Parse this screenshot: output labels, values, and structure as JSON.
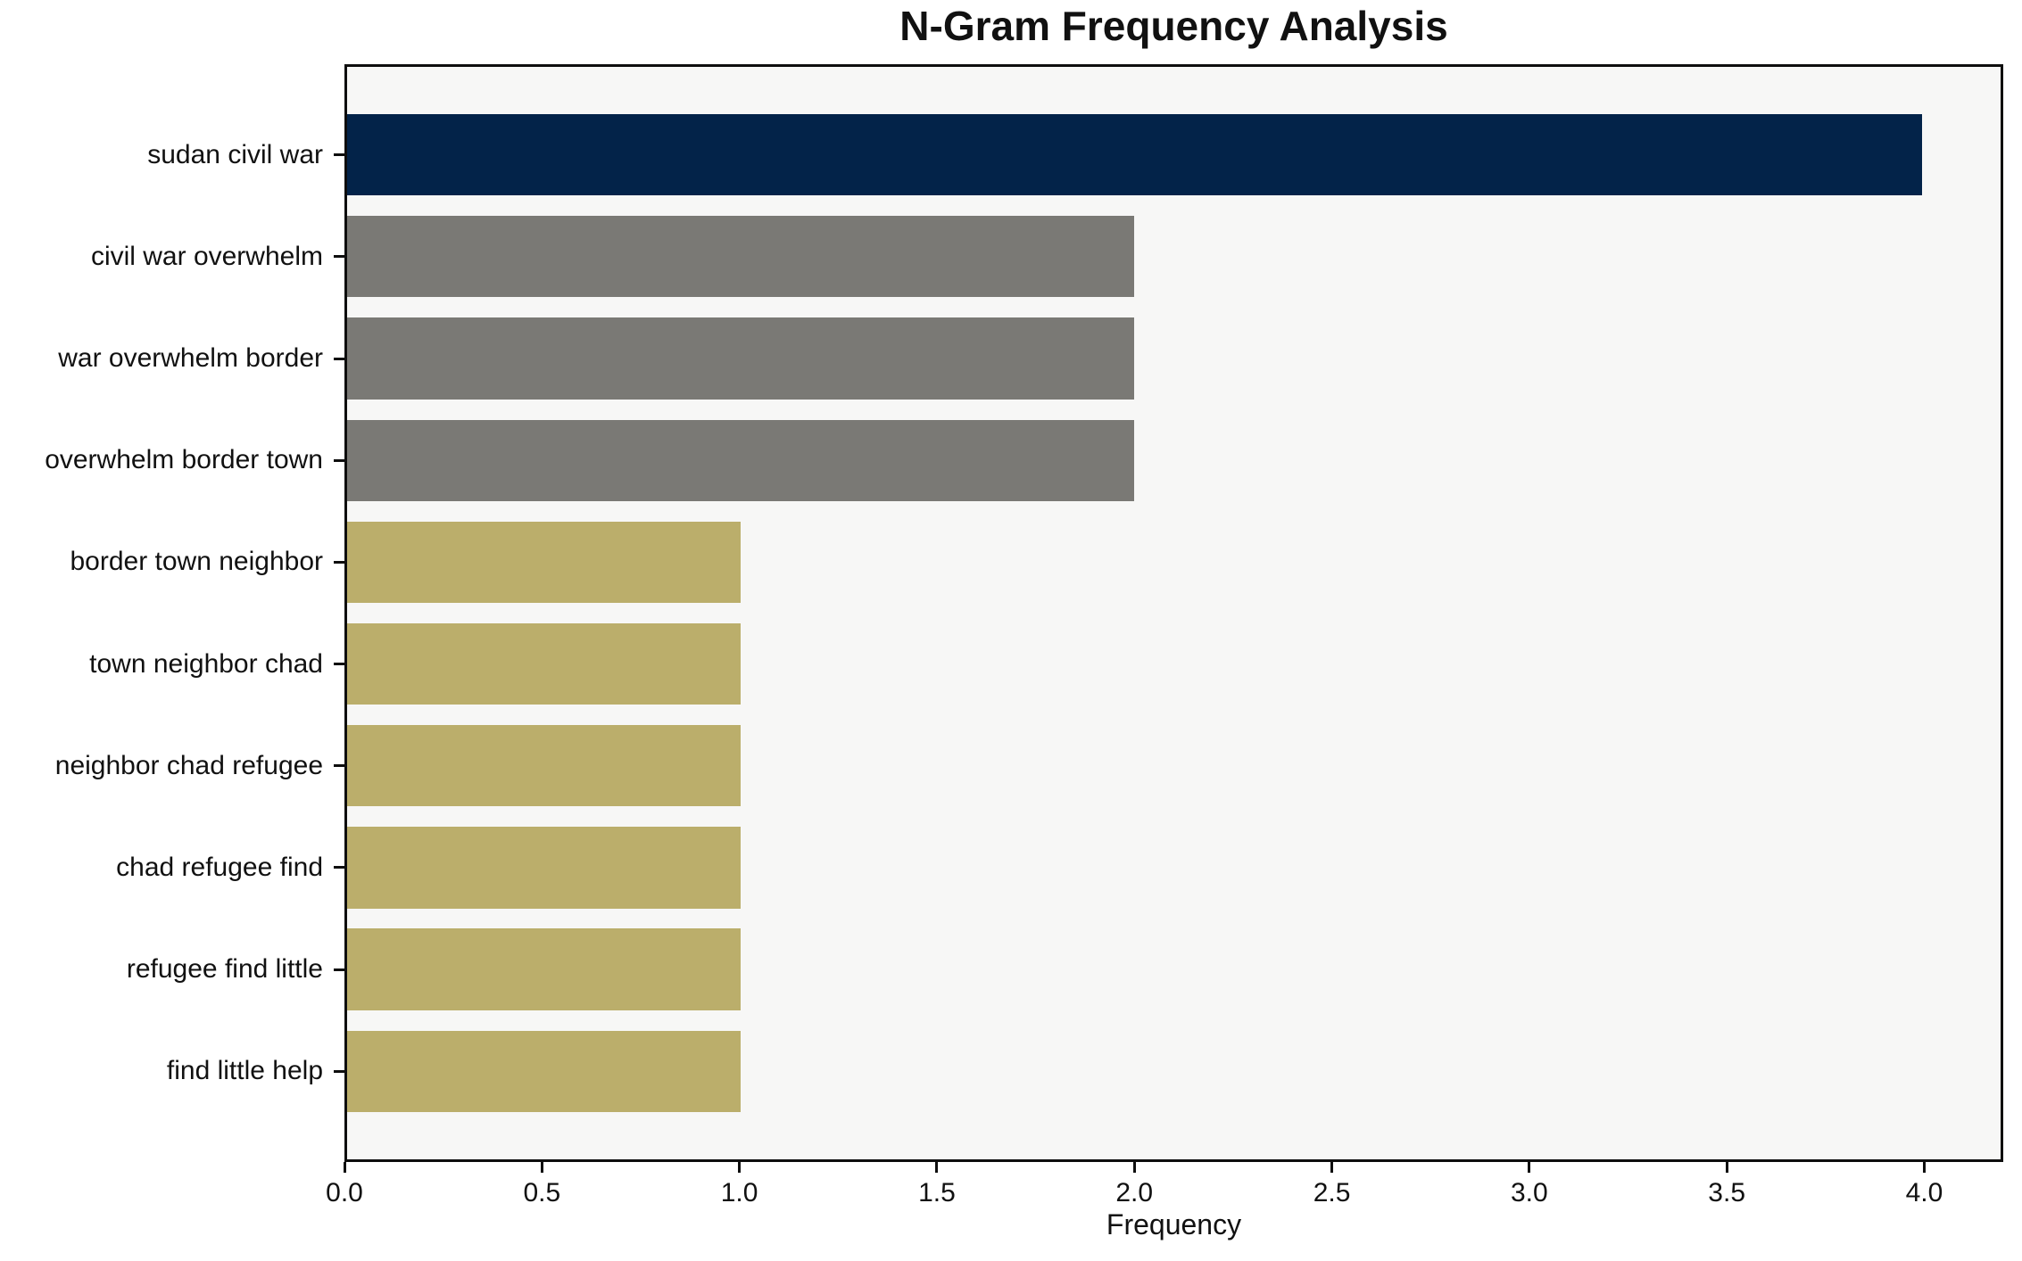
{
  "chart_data": {
    "type": "bar",
    "orientation": "horizontal",
    "title": "N-Gram Frequency Analysis",
    "xlabel": "Frequency",
    "ylabel": "",
    "categories": [
      "sudan civil war",
      "civil war overwhelm",
      "war overwhelm border",
      "overwhelm border town",
      "border town neighbor",
      "town neighbor chad",
      "neighbor chad refugee",
      "chad refugee find",
      "refugee find little",
      "find little help"
    ],
    "values": [
      4,
      2,
      2,
      2,
      1,
      1,
      1,
      1,
      1,
      1
    ],
    "bar_colors": [
      "#032349",
      "#7a7975",
      "#7a7975",
      "#7a7975",
      "#bbae6b",
      "#bbae6b",
      "#bbae6b",
      "#bbae6b",
      "#bbae6b",
      "#bbae6b"
    ],
    "xlim": [
      0,
      4.2
    ],
    "xticks": [
      0.0,
      0.5,
      1.0,
      1.5,
      2.0,
      2.5,
      3.0,
      3.5,
      4.0
    ],
    "xtick_labels": [
      "0.0",
      "0.5",
      "1.0",
      "1.5",
      "2.0",
      "2.5",
      "3.0",
      "3.5",
      "4.0"
    ],
    "grid": false,
    "legend": null,
    "colors": {
      "plot_background": "#f7f7f6",
      "figure_background": "#ffffff",
      "navy": "#032349",
      "gray": "#7a7975",
      "khaki": "#bbae6b",
      "frame": "#0e0e0e"
    }
  }
}
